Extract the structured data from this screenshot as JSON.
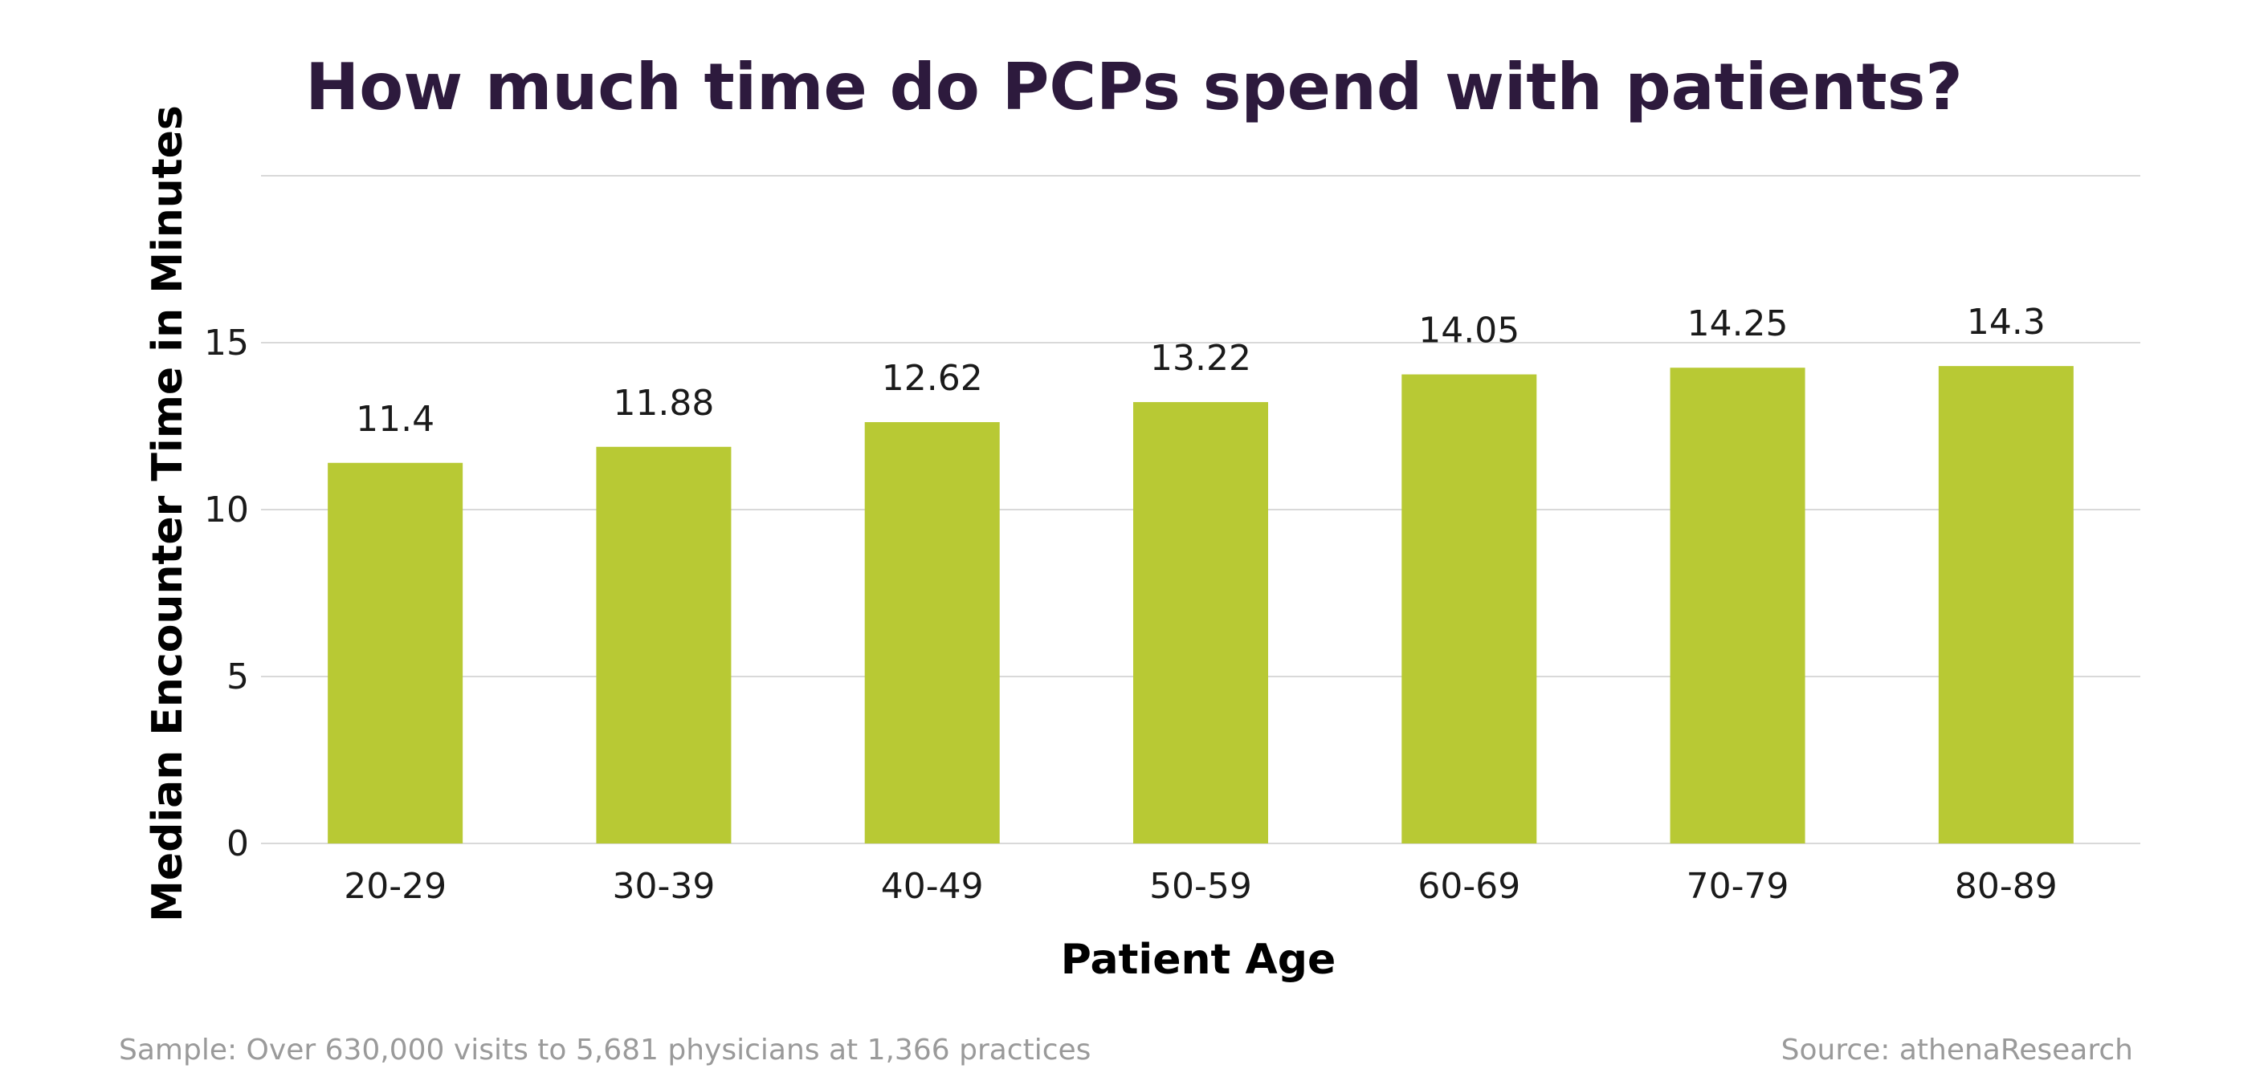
{
  "colors": {
    "title": "#2d1a3d",
    "bar": "#b8c934",
    "grid": "#d9d9d9",
    "footnote": "#9a9a9a"
  },
  "footnotes": {
    "sample": "Sample: Over 630,000 visits to 5,681 physicians at 1,366 practices",
    "source": "Source: athenaResearch"
  },
  "chart_data": {
    "type": "bar",
    "title": "How much time do PCPs spend with patients?",
    "xlabel": "Patient Age",
    "ylabel": "Median Encounter Time in Minutes",
    "categories": [
      "20-29",
      "30-39",
      "40-49",
      "50-59",
      "60-69",
      "70-79",
      "80-89"
    ],
    "values": [
      11.4,
      11.88,
      12.62,
      13.22,
      14.05,
      14.25,
      14.3
    ],
    "value_labels": [
      "11.4",
      "11.88",
      "12.62",
      "13.22",
      "14.05",
      "14.25",
      "14.3"
    ],
    "yticks": [
      0,
      5,
      10,
      15
    ],
    "ytick_labels": [
      "0",
      "5",
      "10",
      "15"
    ],
    "ylim": [
      0,
      20
    ],
    "grid": true,
    "legend": false
  }
}
